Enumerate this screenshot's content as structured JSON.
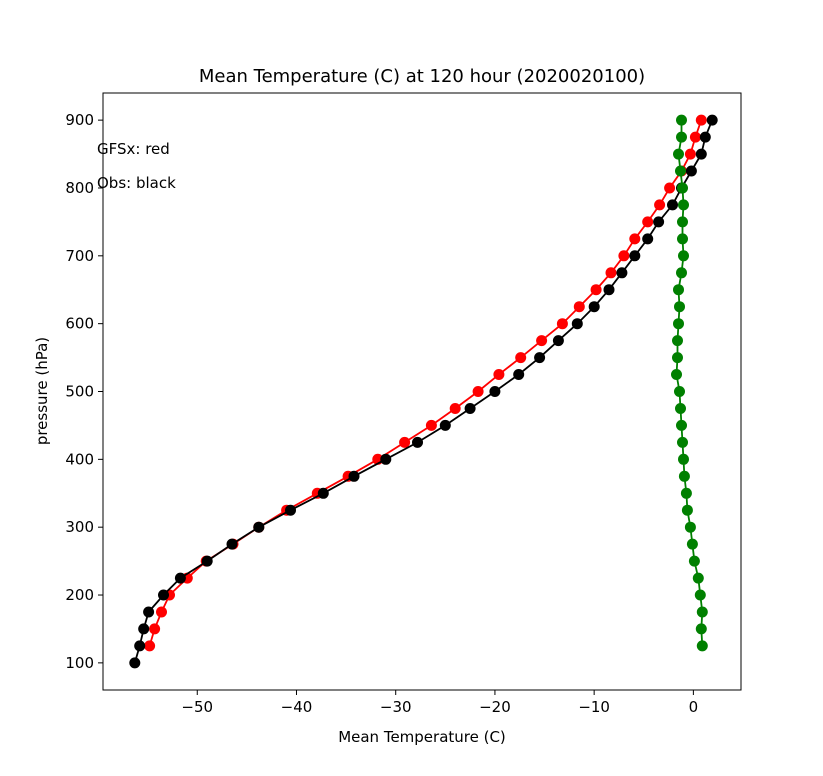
{
  "chart_data": {
    "type": "line",
    "title": "Mean Temperature (C) at 120 hour (2020020100)",
    "xlabel": "Mean Temperature (C)",
    "ylabel": "pressure (hPa)",
    "xlim": [
      -59.5,
      4.8
    ],
    "ylim": [
      60,
      940
    ],
    "xticks": [
      -50,
      -40,
      -30,
      -20,
      -10,
      0
    ],
    "yticks": [
      100,
      200,
      300,
      400,
      500,
      600,
      700,
      800,
      900
    ],
    "annotations": [
      "GFSx: red",
      "Obs: black"
    ],
    "grid": false,
    "series": [
      {
        "color": "#ff0000",
        "points": [
          [
            -54.8,
            125
          ],
          [
            -54.3,
            150
          ],
          [
            -53.6,
            175
          ],
          [
            -52.8,
            200
          ],
          [
            -51.0,
            225
          ],
          [
            -49.1,
            250
          ],
          [
            -46.4,
            275
          ],
          [
            -43.8,
            300
          ],
          [
            -41.0,
            325
          ],
          [
            -37.9,
            350
          ],
          [
            -34.8,
            375
          ],
          [
            -31.8,
            400
          ],
          [
            -29.1,
            425
          ],
          [
            -26.4,
            450
          ],
          [
            -24.0,
            475
          ],
          [
            -21.7,
            500
          ],
          [
            -19.6,
            525
          ],
          [
            -17.4,
            550
          ],
          [
            -15.3,
            575
          ],
          [
            -13.2,
            600
          ],
          [
            -11.5,
            625
          ],
          [
            -9.8,
            650
          ],
          [
            -8.3,
            675
          ],
          [
            -7.0,
            700
          ],
          [
            -5.9,
            725
          ],
          [
            -4.6,
            750
          ],
          [
            -3.4,
            775
          ],
          [
            -2.4,
            800
          ],
          [
            -1.2,
            825
          ],
          [
            -0.3,
            850
          ],
          [
            0.2,
            875
          ],
          [
            0.8,
            900
          ]
        ]
      },
      {
        "color": "#000000",
        "points": [
          [
            -56.3,
            100
          ],
          [
            -55.8,
            125
          ],
          [
            -55.4,
            150
          ],
          [
            -54.9,
            175
          ],
          [
            -53.4,
            200
          ],
          [
            -51.7,
            225
          ],
          [
            -49.0,
            250
          ],
          [
            -46.5,
            275
          ],
          [
            -43.8,
            300
          ],
          [
            -40.6,
            325
          ],
          [
            -37.3,
            350
          ],
          [
            -34.2,
            375
          ],
          [
            -31.0,
            400
          ],
          [
            -27.8,
            425
          ],
          [
            -25.0,
            450
          ],
          [
            -22.5,
            475
          ],
          [
            -20.0,
            500
          ],
          [
            -17.6,
            525
          ],
          [
            -15.5,
            550
          ],
          [
            -13.6,
            575
          ],
          [
            -11.7,
            600
          ],
          [
            -10.0,
            625
          ],
          [
            -8.5,
            650
          ],
          [
            -7.2,
            675
          ],
          [
            -5.9,
            700
          ],
          [
            -4.6,
            725
          ],
          [
            -3.5,
            750
          ],
          [
            -2.1,
            775
          ],
          [
            -1.2,
            800
          ],
          [
            -0.2,
            825
          ],
          [
            0.8,
            850
          ],
          [
            1.2,
            875
          ],
          [
            1.9,
            900
          ]
        ]
      },
      {
        "color": "#008000",
        "points": [
          [
            0.9,
            125
          ],
          [
            0.8,
            150
          ],
          [
            0.9,
            175
          ],
          [
            0.7,
            200
          ],
          [
            0.5,
            225
          ],
          [
            0.1,
            250
          ],
          [
            -0.1,
            275
          ],
          [
            -0.3,
            300
          ],
          [
            -0.6,
            325
          ],
          [
            -0.7,
            350
          ],
          [
            -0.9,
            375
          ],
          [
            -1.0,
            400
          ],
          [
            -1.1,
            425
          ],
          [
            -1.2,
            450
          ],
          [
            -1.3,
            475
          ],
          [
            -1.4,
            500
          ],
          [
            -1.7,
            525
          ],
          [
            -1.6,
            550
          ],
          [
            -1.6,
            575
          ],
          [
            -1.5,
            600
          ],
          [
            -1.4,
            625
          ],
          [
            -1.5,
            650
          ],
          [
            -1.2,
            675
          ],
          [
            -1.0,
            700
          ],
          [
            -1.1,
            725
          ],
          [
            -1.1,
            750
          ],
          [
            -1.0,
            775
          ],
          [
            -1.1,
            800
          ],
          [
            -1.3,
            825
          ],
          [
            -1.5,
            850
          ],
          [
            -1.2,
            875
          ],
          [
            -1.2,
            900
          ]
        ]
      }
    ]
  }
}
